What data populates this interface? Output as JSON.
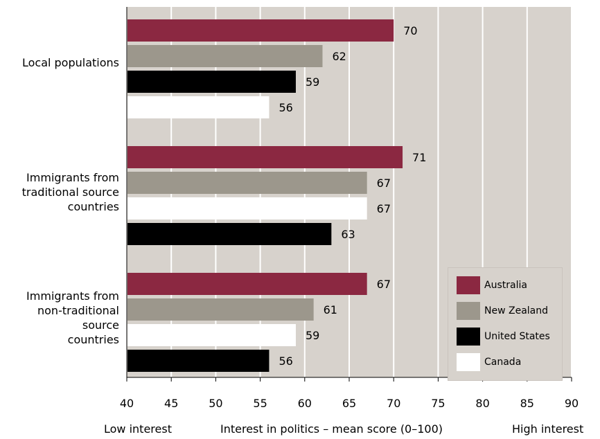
{
  "chart_data": {
    "type": "bar",
    "orientation": "horizontal",
    "categories": [
      "Local populations",
      "Immigrants from\ntraditional source\ncountries",
      "Immigrants from\nnon-traditional\nsource\ncountries"
    ],
    "series": [
      {
        "name": "Australia",
        "color": "#8b2841"
      },
      {
        "name": "New Zealand",
        "color": "#9c978c"
      },
      {
        "name": "United States",
        "color": "#000000"
      },
      {
        "name": "Canada",
        "color": "#ffffff"
      }
    ],
    "bars": [
      [
        {
          "series": "Australia",
          "value": 70
        },
        {
          "series": "New Zealand",
          "value": 62
        },
        {
          "series": "United States",
          "value": 59
        },
        {
          "series": "Canada",
          "value": 56
        }
      ],
      [
        {
          "series": "Australia",
          "value": 71
        },
        {
          "series": "New Zealand",
          "value": 67
        },
        {
          "series": "Canada",
          "value": 67
        },
        {
          "series": "United States",
          "value": 63
        }
      ],
      [
        {
          "series": "Australia",
          "value": 67
        },
        {
          "series": "New Zealand",
          "value": 61
        },
        {
          "series": "Canada",
          "value": 59
        },
        {
          "series": "United States",
          "value": 56
        }
      ]
    ],
    "xlim": [
      40,
      90
    ],
    "xticks": [
      40,
      45,
      50,
      55,
      60,
      65,
      70,
      75,
      80,
      85,
      90
    ],
    "xlabel": "Interest in politics – mean score (0–100)",
    "xlabel_left": "Low interest",
    "xlabel_right": "High interest",
    "legend_position": "bottom-right",
    "grid": true,
    "plot_background": "#d7d2cc",
    "grid_color": "#ffffff"
  }
}
